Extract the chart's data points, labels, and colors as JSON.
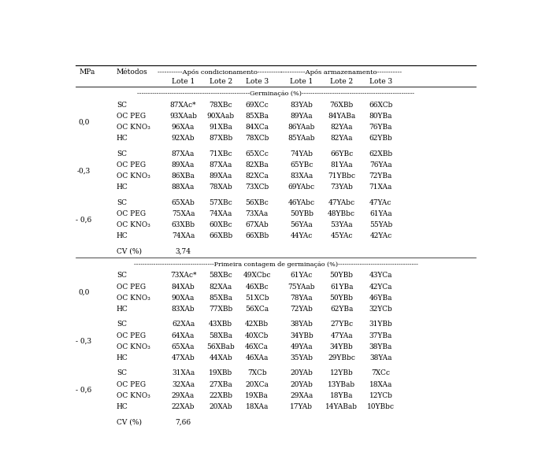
{
  "col_header1_cond": "-----------Após condicionamento-----------",
  "col_header1_arm": "-----------Após armazenamento-----------",
  "col_header2": [
    "Lote 1",
    "Lote 2",
    "Lote 3",
    "Lote 1",
    "Lote 2",
    "Lote 3"
  ],
  "section1_label": "----------------------------------------------------Germinação (%)----------------------------------------------------",
  "section2_label": "-------------------------------------Primeira contagem de germinação (%)-------------------------------------",
  "cv1": "3,74",
  "cv2": "7,66",
  "rows_germ": [
    {
      "mpa": "0,0",
      "data": [
        [
          "SC",
          "87XAc*",
          "78XBc",
          "69XCc",
          "83YAb",
          "76XBb",
          "66XCb"
        ],
        [
          "OC PEG",
          "93XAab",
          "90XAab",
          "85XBa",
          "89YAa",
          "84YABa",
          "80YBa"
        ],
        [
          "OC KNO₃",
          "96XAa",
          "91XBa",
          "84XCa",
          "86YAab",
          "82YAa",
          "76YBa"
        ],
        [
          "HC",
          "92XAb",
          "87XBb",
          "78XCb",
          "85YAab",
          "82YAa",
          "62YBb"
        ]
      ]
    },
    {
      "mpa": "-0,3",
      "data": [
        [
          "SC",
          "87XAa",
          "71XBc",
          "65XCc",
          "74YAb",
          "66YBc",
          "62XBb"
        ],
        [
          "OC PEG",
          "89XAa",
          "87XAa",
          "82XBa",
          "65YBc",
          "81YAa",
          "76YAa"
        ],
        [
          "OC KNO₃",
          "86XBa",
          "89XAa",
          "82XCa",
          "83XAa",
          "71YBbc",
          "72YBa"
        ],
        [
          "HC",
          "88XAa",
          "78XAb",
          "73XCb",
          "69YAbc",
          "73YAb",
          "71XAa"
        ]
      ]
    },
    {
      "mpa": "- 0,6",
      "data": [
        [
          "SC",
          "65XAb",
          "57XBc",
          "56XBc",
          "46YAbc",
          "47YAbc",
          "47YAc"
        ],
        [
          "OC PEG",
          "75XAa",
          "74XAa",
          "73XAa",
          "50YBb",
          "48YBbc",
          "61YAa"
        ],
        [
          "OC KNO₃",
          "63XBb",
          "60XBc",
          "67XAb",
          "56YAa",
          "53YAa",
          "55YAb"
        ],
        [
          "HC",
          "74XAa",
          "66XBb",
          "66XBb",
          "44YAc",
          "45YAc",
          "42YAc"
        ]
      ]
    }
  ],
  "rows_pcg": [
    {
      "mpa": "0,0",
      "data": [
        [
          "SC",
          "73XAc*",
          "58XBc",
          "49XCbc",
          "61YAc",
          "50YBb",
          "43YCa"
        ],
        [
          "OC PEG",
          "84XAb",
          "82XAa",
          "46XBc",
          "75YAab",
          "61YBa",
          "42YCa"
        ],
        [
          "OC KNO₃",
          "90XAa",
          "85XBa",
          "51XCb",
          "78YAa",
          "50YBb",
          "46YBa"
        ],
        [
          "HC",
          "83XAb",
          "77XBb",
          "56XCa",
          "72YAb",
          "62YBa",
          "32YCb"
        ]
      ]
    },
    {
      "mpa": "- 0,3",
      "data": [
        [
          "SC",
          "62XAa",
          "43XBb",
          "42XBb",
          "38YAb",
          "27YBc",
          "31YBb"
        ],
        [
          "OC PEG",
          "64XAa",
          "58XBa",
          "40XCb",
          "34YBb",
          "47YAa",
          "37YBa"
        ],
        [
          "OC KNO₃",
          "65XAa",
          "56XBab",
          "46XCa",
          "49YAa",
          "34YBb",
          "38YBa"
        ],
        [
          "HC",
          "47XAb",
          "44XAb",
          "46XAa",
          "35YAb",
          "29YBbc",
          "38YAa"
        ]
      ]
    },
    {
      "mpa": "- 0,6",
      "data": [
        [
          "SC",
          "31XAa",
          "19XBb",
          "7XCb",
          "20YAb",
          "12YBb",
          "7XCc"
        ],
        [
          "OC PEG",
          "32XAa",
          "27XBa",
          "20XCa",
          "20YAb",
          "13YBab",
          "18XAa"
        ],
        [
          "OC KNO₃",
          "29XAa",
          "22XBb",
          "19XBa",
          "29XAa",
          "18YBa",
          "12YCb"
        ],
        [
          "HC",
          "22XAb",
          "20XAb",
          "18XAa",
          "17YAb",
          "14YABab",
          "10YBbc"
        ]
      ]
    }
  ]
}
